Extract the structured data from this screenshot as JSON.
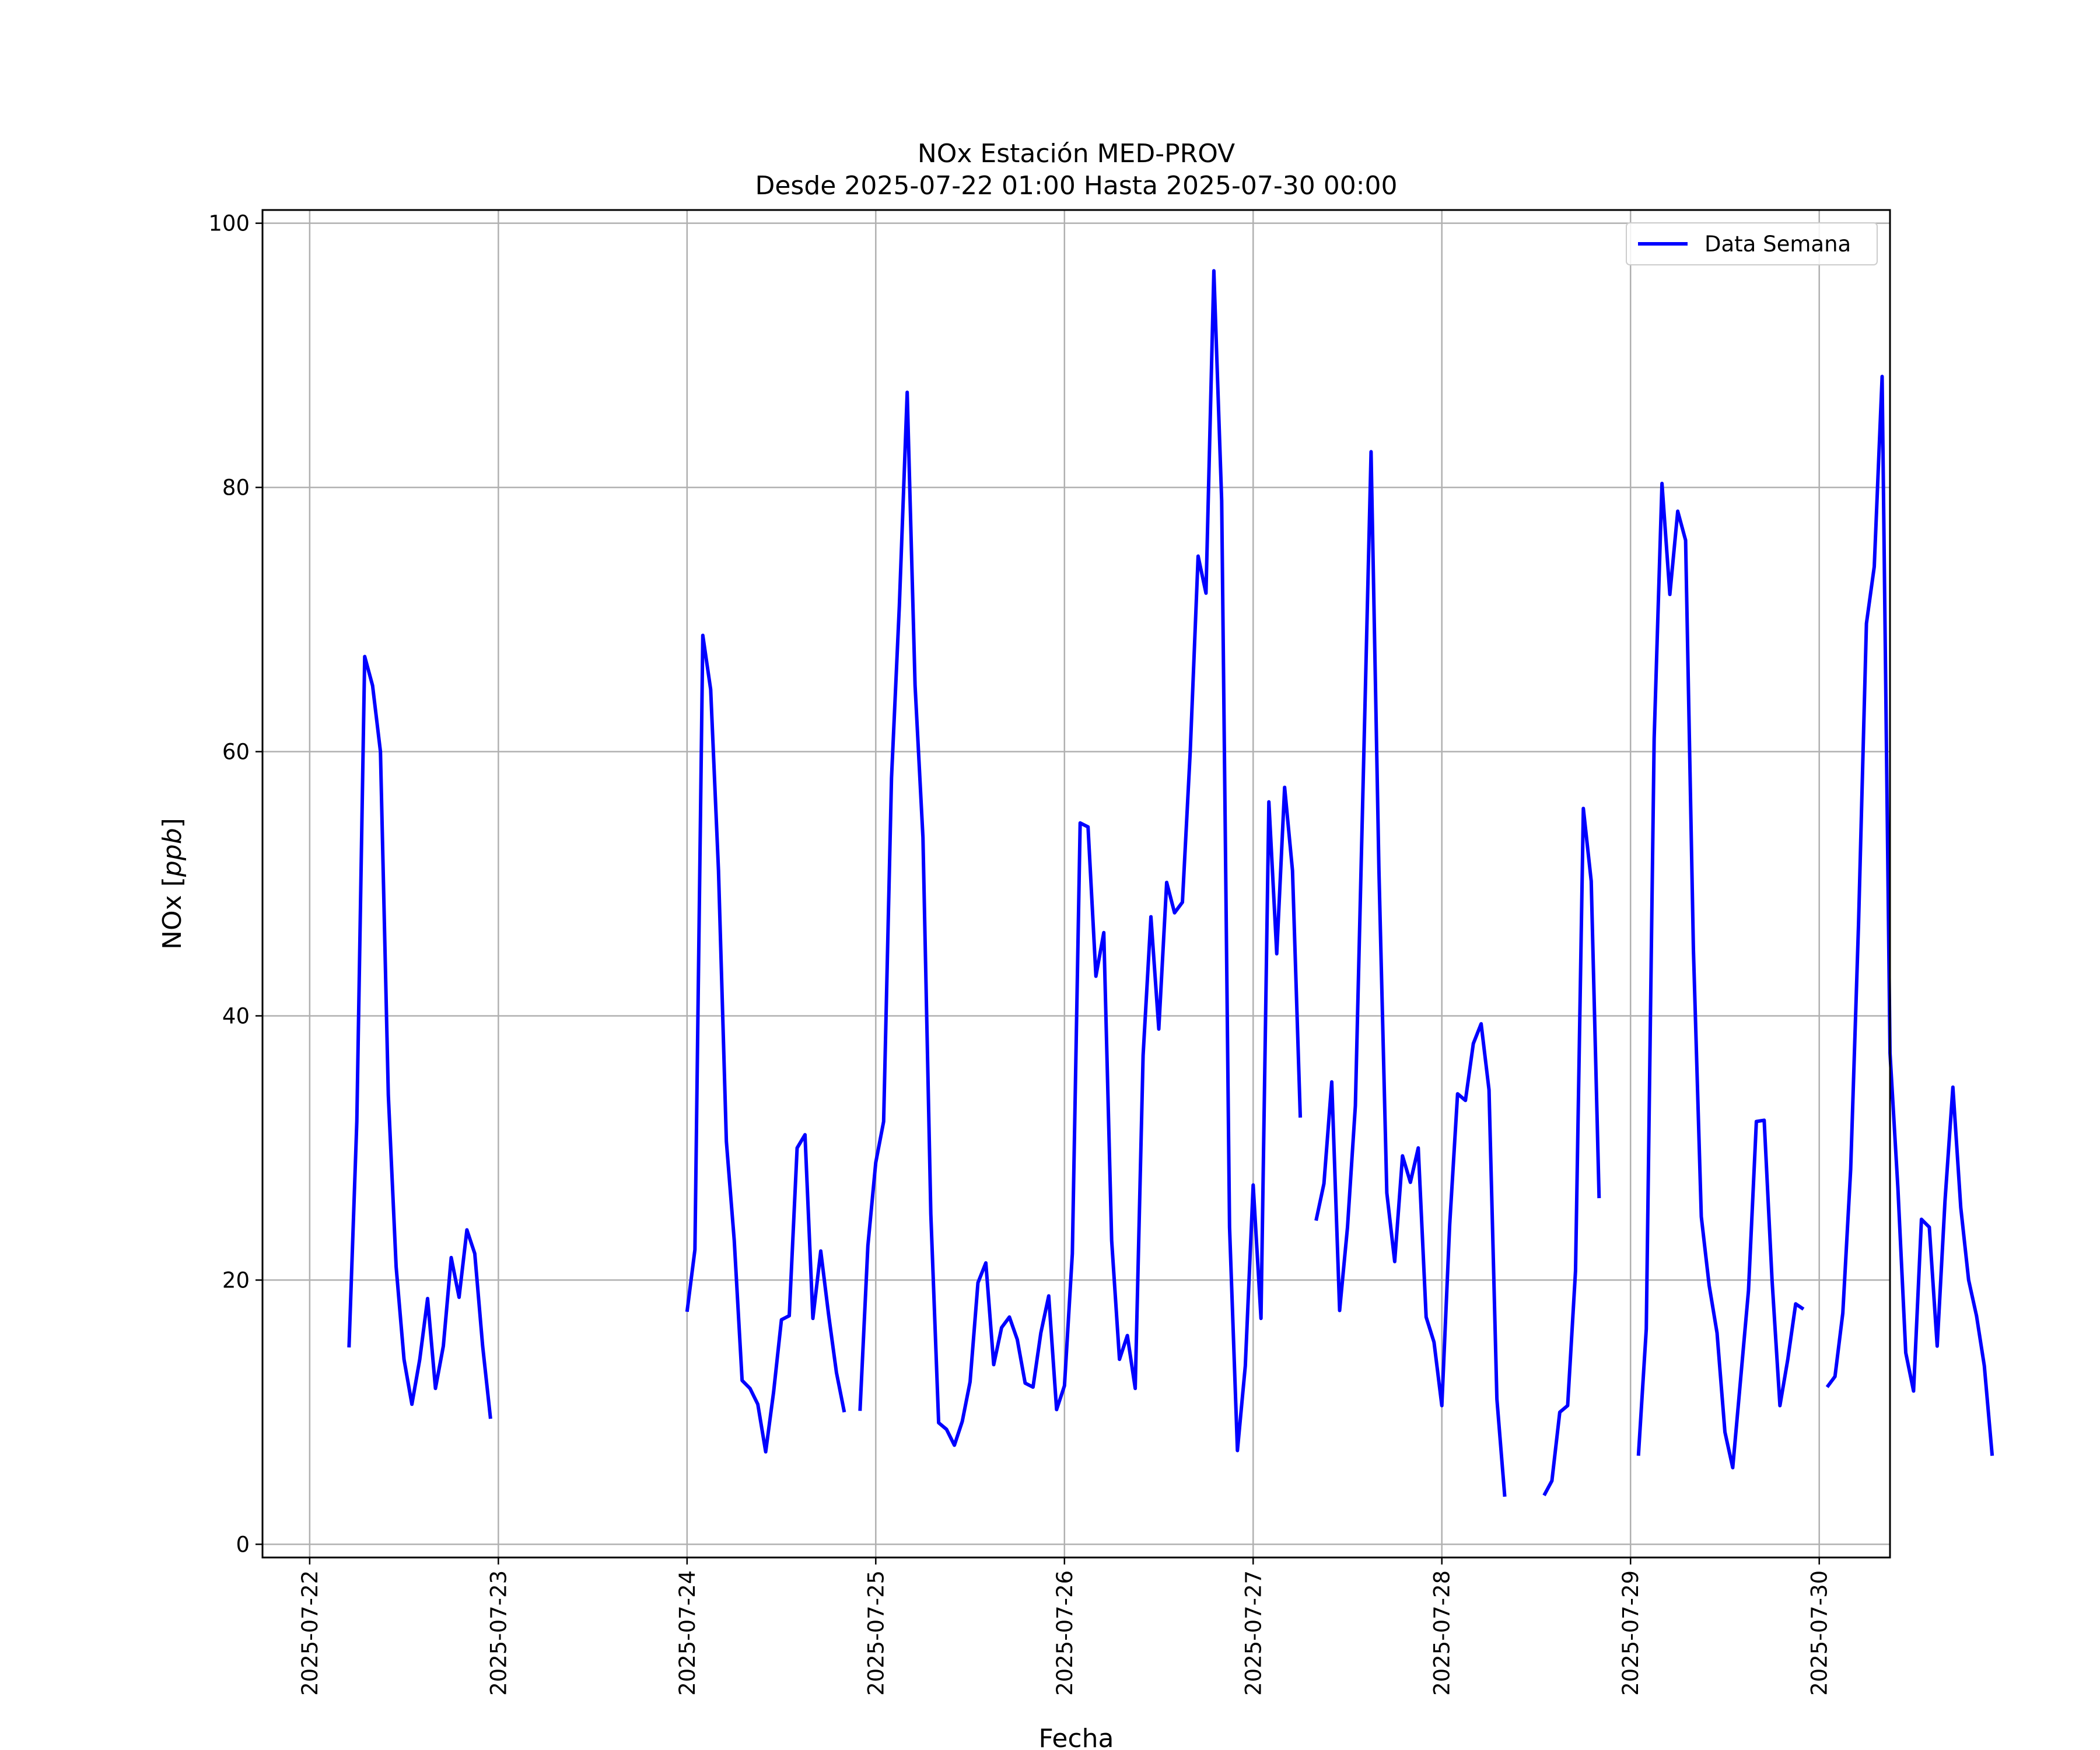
{
  "chart_data": {
    "type": "line",
    "title": "NOx Estación MED-PROV",
    "subtitle": "Desde 2025-07-22 01:00 Hasta 2025-07-30 00:00",
    "xlabel": "Fecha",
    "ylabel": "NOx [ppb]",
    "ylabel_parts": {
      "prefix": "NOx [",
      "unit": "ppb",
      "suffix": "]"
    },
    "xlim": [
      "2025-07-21 18:00",
      "2025-07-30 09:00"
    ],
    "ylim": [
      -1,
      101
    ],
    "grid": true,
    "legend": {
      "placement": "top-right"
    },
    "x_ticks": [
      "2025-07-22",
      "2025-07-23",
      "2025-07-24",
      "2025-07-25",
      "2025-07-26",
      "2025-07-27",
      "2025-07-28",
      "2025-07-29",
      "2025-07-30"
    ],
    "y_ticks": [
      0,
      20,
      40,
      60,
      80,
      100
    ],
    "series": [
      {
        "name": "Data Semana",
        "color": "#0000ff",
        "x_start": "2025-07-22 05:00",
        "x_step_hours": 1,
        "values": [
          14.9,
          32,
          67.2,
          65,
          60,
          34,
          21,
          14,
          10.6,
          14,
          18.6,
          11.8,
          15,
          21.7,
          18.7,
          23.8,
          22,
          15,
          9.5,
          null,
          null,
          null,
          null,
          null,
          null,
          null,
          null,
          null,
          null,
          null,
          null,
          null,
          null,
          null,
          null,
          null,
          null,
          null,
          null,
          null,
          null,
          null,
          null,
          17.6,
          22.3,
          68.8,
          64.7,
          51,
          30.5,
          23,
          12.4,
          11.8,
          10.6,
          7,
          11.5,
          17,
          17.3,
          30,
          31,
          17.1,
          22.2,
          17.4,
          13,
          10,
          null,
          10.1,
          22.6,
          28.9,
          32,
          58,
          71,
          87.2,
          65,
          53.5,
          25,
          9.2,
          8.7,
          7.5,
          9.3,
          12.3,
          19.8,
          21.3,
          13.6,
          16.4,
          17.2,
          15.5,
          12.2,
          11.9,
          16,
          18.8,
          10.2,
          12,
          22,
          54.6,
          54.3,
          43,
          46.3,
          23,
          14,
          15.8,
          11.8,
          37,
          47.5,
          39,
          50.1,
          47.8,
          48.6,
          60,
          74.8,
          72,
          96.4,
          79,
          24,
          7.1,
          13.5,
          27.2,
          17.1,
          56.2,
          44.7,
          57.3,
          51,
          32.3,
          null,
          24.5,
          27.3,
          35,
          17.7,
          24,
          33.2,
          58,
          82.7,
          51,
          26.6,
          21.4,
          29.4,
          27.4,
          30,
          17.2,
          15.3,
          10.5,
          24.2,
          34.1,
          33.6,
          37.9,
          39.4,
          34.4,
          11,
          3.6,
          null,
          null,
          null,
          null,
          3.7,
          4.8,
          10,
          10.5,
          20.7,
          55.7,
          50.2,
          26.2,
          null,
          null,
          null,
          null,
          6.7,
          16.3,
          61,
          80.3,
          71.9,
          78.2,
          76,
          45,
          24.8,
          19.6,
          16,
          8.5,
          5.8,
          12.5,
          19.2,
          32,
          32.1,
          20,
          10.5,
          14,
          18.2,
          17.8,
          null,
          null,
          11.9,
          12.7,
          17.5,
          28.4,
          47,
          69.7,
          74,
          88.4,
          37.2,
          27,
          14.5,
          11.6,
          24.6,
          24,
          15,
          26,
          34.6,
          25.5,
          20,
          17.3,
          13.5,
          6.7
        ]
      }
    ]
  }
}
